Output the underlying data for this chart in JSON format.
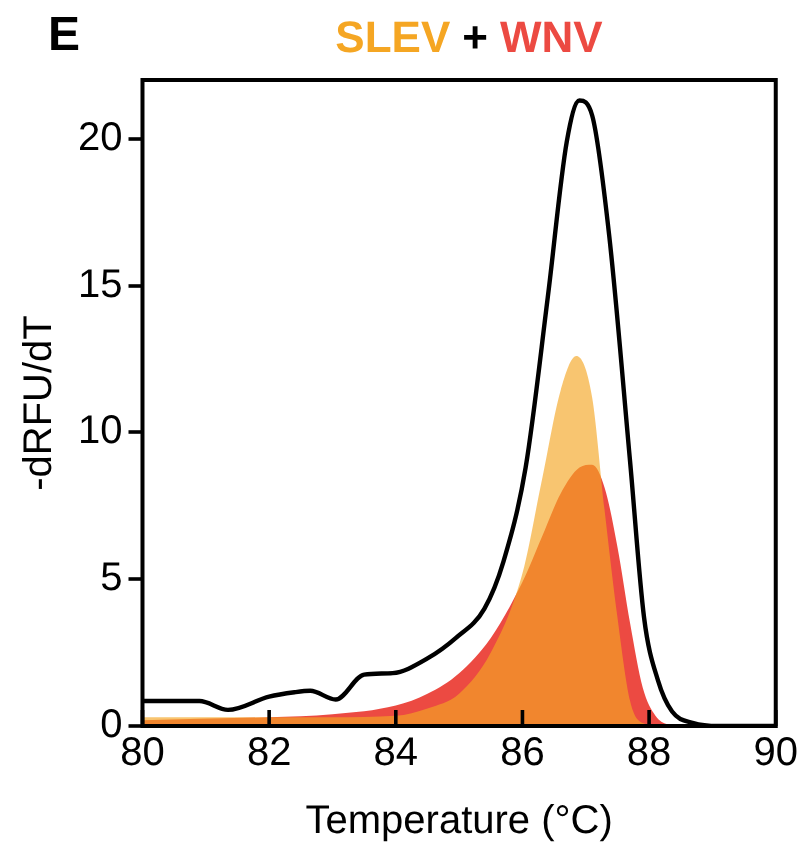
{
  "chart_data": {
    "type": "area",
    "xlabel": "Temperature (°C)",
    "ylabel": "-dRFU/dT",
    "annotations": [
      "E",
      "+"
    ],
    "legend": "top",
    "xlim": [
      80,
      90
    ],
    "xticks": [
      80,
      82,
      84,
      86,
      88,
      90
    ],
    "ylim": [
      0,
      22
    ],
    "yticks": [
      0,
      5,
      10,
      15,
      20
    ],
    "grid": false,
    "series": [
      {
        "name": "SLEV",
        "type": "area",
        "color": "#f5a623",
        "x": [
          80,
          82,
          83,
          84,
          84.5,
          85,
          85.5,
          86,
          86.3,
          86.6,
          86.85,
          87.1,
          87.3,
          87.5,
          87.7,
          87.9,
          88.2,
          90
        ],
        "values": [
          0.3,
          0.3,
          0.3,
          0.35,
          0.6,
          1.1,
          2.5,
          5.2,
          8.3,
          11.4,
          12.6,
          11.2,
          7.3,
          3.7,
          0.85,
          0.1,
          0,
          0
        ]
      },
      {
        "name": "WNV",
        "type": "area",
        "color": "#ec4a42",
        "x": [
          80,
          82,
          83,
          84,
          84.5,
          85,
          85.5,
          86,
          86.3,
          86.6,
          86.9,
          87.1,
          87.3,
          87.5,
          87.7,
          87.9,
          88.1,
          88.3,
          88.5,
          90
        ],
        "values": [
          0.2,
          0.3,
          0.4,
          0.7,
          1.1,
          1.8,
          3.0,
          4.9,
          6.4,
          7.9,
          8.8,
          8.9,
          8.1,
          6.1,
          3.5,
          1.3,
          0.35,
          0.05,
          0,
          0
        ]
      },
      {
        "type": "line",
        "color": "#000000",
        "x": [
          80,
          80.9,
          81.35,
          82,
          82.4,
          82.65,
          83.05,
          83.5,
          83.95,
          84.5,
          84.95,
          85.4,
          85.7,
          86.05,
          86.4,
          86.7,
          86.9,
          87.1,
          87.37,
          87.7,
          87.92,
          88.14,
          88.36,
          88.7,
          89.1,
          90
        ],
        "values": [
          0.85,
          0.85,
          0.55,
          1.0,
          1.15,
          1.2,
          0.9,
          1.75,
          1.8,
          2.3,
          3.0,
          4.0,
          5.6,
          8.8,
          14.6,
          19.9,
          21.3,
          20.8,
          16.7,
          9.0,
          3.7,
          1.55,
          0.5,
          0.1,
          0,
          0
        ]
      }
    ]
  }
}
